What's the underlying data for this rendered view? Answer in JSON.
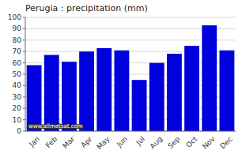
{
  "chart_data": {
    "type": "bar",
    "title": "Perugia : precipitation (mm)",
    "categories": [
      "Jan",
      "Feb",
      "Mar",
      "Apr",
      "May",
      "Jun",
      "Jul",
      "Aug",
      "Sep",
      "Oct",
      "Nov",
      "Dec"
    ],
    "values": [
      58,
      67,
      61,
      70,
      73,
      71,
      45,
      60,
      68,
      75,
      93,
      71
    ],
    "color": "#0000dd",
    "ylim": [
      0,
      100
    ],
    "yticks": [
      0,
      10,
      20,
      30,
      40,
      50,
      60,
      70,
      80,
      90,
      100
    ],
    "grid": true,
    "annotations": [
      "www.allmetsat.com"
    ]
  }
}
